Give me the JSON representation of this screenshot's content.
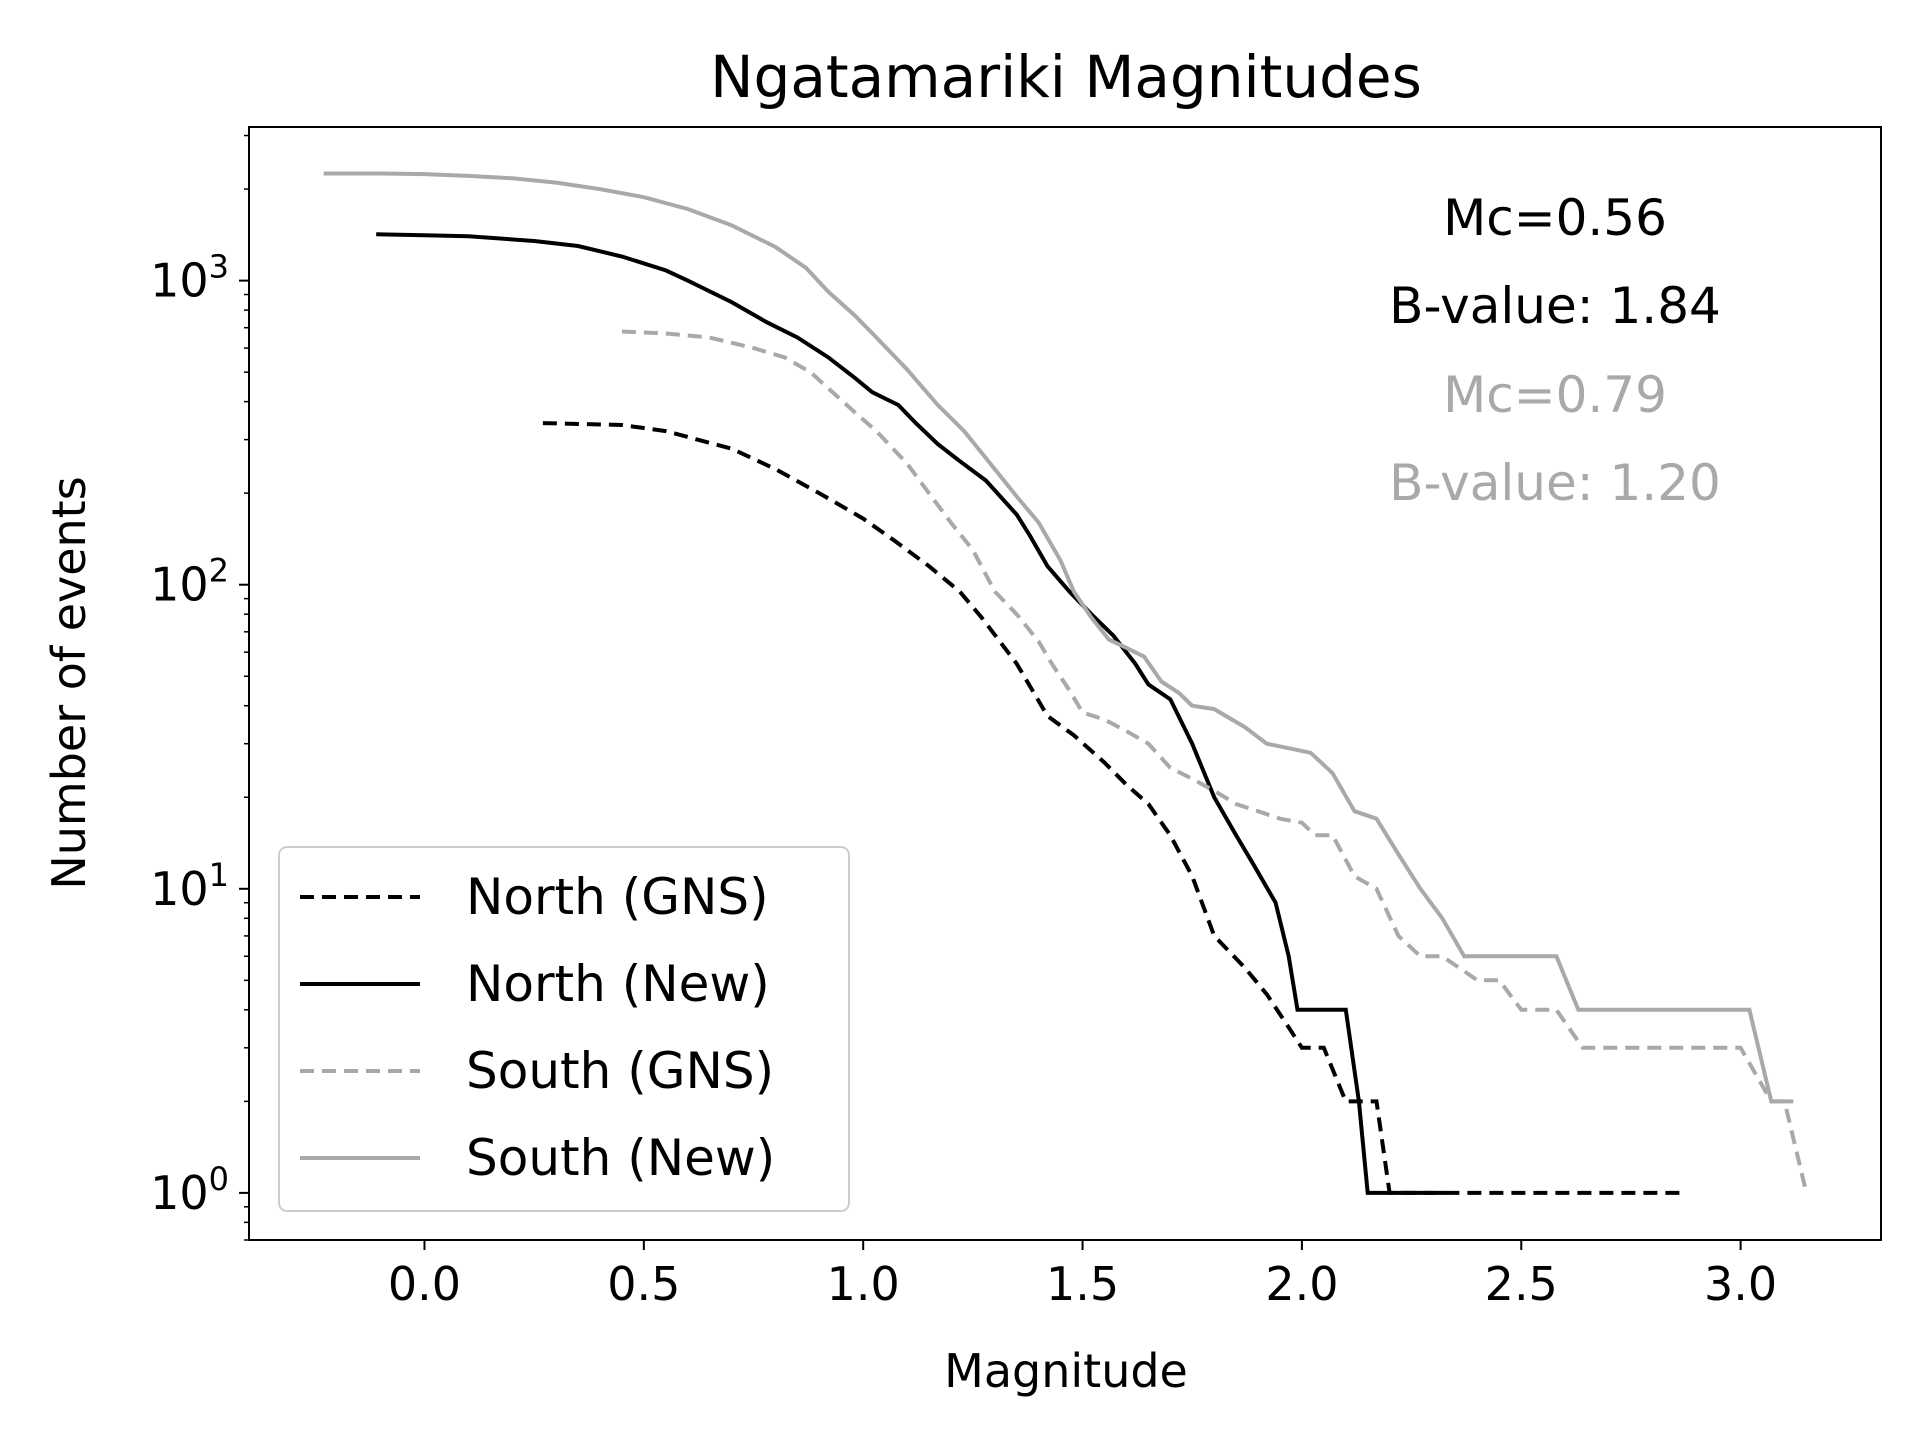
{
  "chart_data": {
    "type": "line",
    "title": "Ngatamariki Magnitudes",
    "xlabel": "Magnitude",
    "ylabel": "Number of events",
    "xlim": [
      -0.4,
      3.32
    ],
    "ylim": [
      0.7,
      3200
    ],
    "yscale": "log",
    "grid": false,
    "legend_position": "lower-left",
    "x_ticks": [
      0.0,
      0.5,
      1.0,
      1.5,
      2.0,
      2.5,
      3.0
    ],
    "x_tick_labels": [
      "0.0",
      "0.5",
      "1.0",
      "1.5",
      "2.0",
      "2.5",
      "3.0"
    ],
    "y_ticks": [
      1,
      10,
      100,
      1000
    ],
    "y_tick_bases": [
      "10",
      "10",
      "10",
      "10"
    ],
    "y_tick_exponents": [
      "0",
      "1",
      "2",
      "3"
    ],
    "annotations": [
      {
        "text": "Mc=0.56",
        "color": "#000000"
      },
      {
        "text": "B-value: 1.84",
        "color": "#000000"
      },
      {
        "text": "Mc=0.79",
        "color": "#a9a9a9"
      },
      {
        "text": "B-value: 1.20",
        "color": "#a9a9a9"
      }
    ],
    "series": [
      {
        "name": "North (GNS)",
        "color": "#000000",
        "dash": "dashed",
        "points": [
          [
            0.27,
            340
          ],
          [
            0.45,
            335
          ],
          [
            0.55,
            320
          ],
          [
            0.7,
            280
          ],
          [
            0.8,
            240
          ],
          [
            0.9,
            200
          ],
          [
            1.0,
            165
          ],
          [
            1.07,
            140
          ],
          [
            1.15,
            115
          ],
          [
            1.22,
            95
          ],
          [
            1.27,
            78
          ],
          [
            1.35,
            55
          ],
          [
            1.42,
            37
          ],
          [
            1.48,
            32
          ],
          [
            1.55,
            26
          ],
          [
            1.6,
            22
          ],
          [
            1.65,
            19
          ],
          [
            1.7,
            15
          ],
          [
            1.75,
            11
          ],
          [
            1.8,
            7
          ],
          [
            1.87,
            5.5
          ],
          [
            1.92,
            4.5
          ],
          [
            1.97,
            3.5
          ],
          [
            2.0,
            3
          ],
          [
            2.05,
            3
          ],
          [
            2.1,
            2
          ],
          [
            2.17,
            2
          ],
          [
            2.2,
            1
          ],
          [
            2.3,
            1
          ],
          [
            2.87,
            1
          ]
        ]
      },
      {
        "name": "North (New)",
        "color": "#000000",
        "dash": "solid",
        "points": [
          [
            -0.11,
            1420
          ],
          [
            0.0,
            1410
          ],
          [
            0.1,
            1400
          ],
          [
            0.25,
            1350
          ],
          [
            0.35,
            1300
          ],
          [
            0.45,
            1200
          ],
          [
            0.55,
            1080
          ],
          [
            0.6,
            1000
          ],
          [
            0.7,
            850
          ],
          [
            0.78,
            730
          ],
          [
            0.85,
            650
          ],
          [
            0.92,
            560
          ],
          [
            0.98,
            480
          ],
          [
            1.02,
            430
          ],
          [
            1.08,
            390
          ],
          [
            1.12,
            340
          ],
          [
            1.17,
            290
          ],
          [
            1.22,
            255
          ],
          [
            1.28,
            220
          ],
          [
            1.35,
            170
          ],
          [
            1.38,
            145
          ],
          [
            1.42,
            115
          ],
          [
            1.47,
            95
          ],
          [
            1.52,
            80
          ],
          [
            1.57,
            68
          ],
          [
            1.62,
            55
          ],
          [
            1.65,
            47
          ],
          [
            1.7,
            42
          ],
          [
            1.75,
            30
          ],
          [
            1.8,
            20
          ],
          [
            1.85,
            15
          ],
          [
            1.89,
            12
          ],
          [
            1.94,
            9
          ],
          [
            1.97,
            6
          ],
          [
            1.99,
            4
          ],
          [
            2.1,
            4
          ],
          [
            2.13,
            2
          ],
          [
            2.15,
            1
          ],
          [
            2.33,
            1
          ]
        ]
      },
      {
        "name": "South (GNS)",
        "color": "#a9a9a9",
        "dash": "dashed",
        "points": [
          [
            0.45,
            680
          ],
          [
            0.55,
            670
          ],
          [
            0.65,
            650
          ],
          [
            0.75,
            600
          ],
          [
            0.82,
            560
          ],
          [
            0.88,
            500
          ],
          [
            0.93,
            430
          ],
          [
            0.98,
            370
          ],
          [
            1.03,
            320
          ],
          [
            1.1,
            250
          ],
          [
            1.15,
            200
          ],
          [
            1.2,
            160
          ],
          [
            1.25,
            130
          ],
          [
            1.3,
            95
          ],
          [
            1.35,
            80
          ],
          [
            1.4,
            65
          ],
          [
            1.43,
            55
          ],
          [
            1.47,
            45
          ],
          [
            1.5,
            38
          ],
          [
            1.55,
            36
          ],
          [
            1.6,
            33
          ],
          [
            1.65,
            30
          ],
          [
            1.7,
            25
          ],
          [
            1.75,
            23
          ],
          [
            1.8,
            21
          ],
          [
            1.85,
            19
          ],
          [
            1.9,
            18
          ],
          [
            1.95,
            17
          ],
          [
            2.0,
            16.5
          ],
          [
            2.03,
            15
          ],
          [
            2.07,
            15
          ],
          [
            2.12,
            11
          ],
          [
            2.17,
            10
          ],
          [
            2.22,
            7
          ],
          [
            2.27,
            6
          ],
          [
            2.32,
            6
          ],
          [
            2.4,
            5
          ],
          [
            2.45,
            5
          ],
          [
            2.5,
            4
          ],
          [
            2.58,
            4
          ],
          [
            2.64,
            3
          ],
          [
            3.0,
            3
          ],
          [
            3.07,
            2
          ],
          [
            3.1,
            2
          ],
          [
            3.15,
            1
          ]
        ]
      },
      {
        "name": "South (New)",
        "color": "#a9a9a9",
        "dash": "solid",
        "points": [
          [
            -0.23,
            2250
          ],
          [
            -0.1,
            2250
          ],
          [
            0.0,
            2240
          ],
          [
            0.1,
            2210
          ],
          [
            0.2,
            2170
          ],
          [
            0.3,
            2100
          ],
          [
            0.4,
            2000
          ],
          [
            0.5,
            1880
          ],
          [
            0.6,
            1720
          ],
          [
            0.7,
            1520
          ],
          [
            0.8,
            1290
          ],
          [
            0.87,
            1100
          ],
          [
            0.92,
            920
          ],
          [
            0.98,
            770
          ],
          [
            1.03,
            650
          ],
          [
            1.1,
            510
          ],
          [
            1.17,
            390
          ],
          [
            1.23,
            320
          ],
          [
            1.3,
            240
          ],
          [
            1.35,
            195
          ],
          [
            1.4,
            160
          ],
          [
            1.45,
            120
          ],
          [
            1.48,
            95
          ],
          [
            1.52,
            78
          ],
          [
            1.56,
            66
          ],
          [
            1.6,
            62
          ],
          [
            1.64,
            58
          ],
          [
            1.68,
            48
          ],
          [
            1.72,
            44
          ],
          [
            1.75,
            40
          ],
          [
            1.8,
            39
          ],
          [
            1.87,
            34
          ],
          [
            1.92,
            30
          ],
          [
            1.97,
            29
          ],
          [
            2.02,
            28
          ],
          [
            2.07,
            24
          ],
          [
            2.12,
            18
          ],
          [
            2.17,
            17
          ],
          [
            2.22,
            13
          ],
          [
            2.27,
            10
          ],
          [
            2.32,
            8
          ],
          [
            2.37,
            6
          ],
          [
            2.5,
            6
          ],
          [
            2.58,
            6
          ],
          [
            2.63,
            4
          ],
          [
            3.02,
            4
          ],
          [
            3.07,
            2
          ],
          [
            3.12,
            2
          ]
        ]
      }
    ]
  }
}
